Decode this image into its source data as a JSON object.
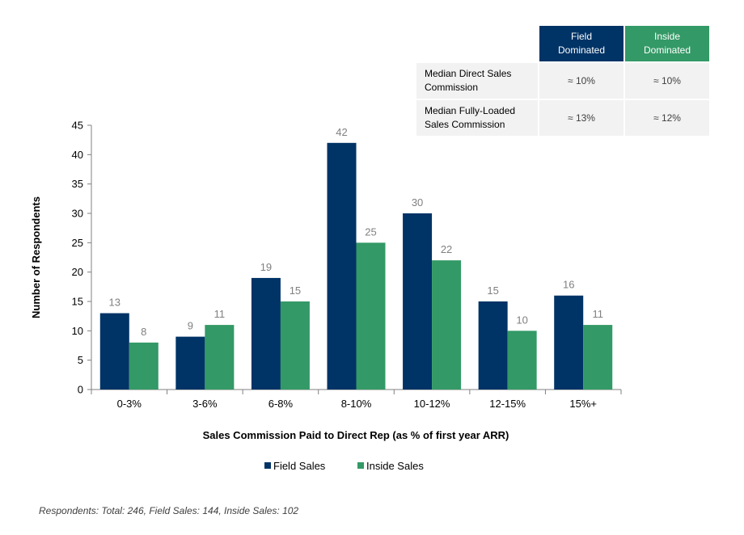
{
  "chart_data": {
    "type": "bar",
    "categories": [
      "0-3%",
      "3-6%",
      "6-8%",
      "8-10%",
      "10-12%",
      "12-15%",
      "15%+"
    ],
    "series": [
      {
        "name": "Field Sales",
        "values": [
          13,
          9,
          19,
          42,
          30,
          15,
          16
        ],
        "color": "#003366"
      },
      {
        "name": "Inside Sales",
        "values": [
          8,
          11,
          15,
          25,
          22,
          10,
          11
        ],
        "color": "#339966"
      }
    ],
    "xlabel": "Sales Commission Paid to Direct Rep (as % of  first year ARR)",
    "ylabel": "Number of Respondents",
    "ylim": [
      0,
      45
    ],
    "yticks": [
      0,
      5,
      10,
      15,
      20,
      25,
      30,
      35,
      40,
      45
    ],
    "grid": false,
    "legend": "bottom-center",
    "data_labels": true
  },
  "summary_table": {
    "header_field": "Field\nDominated",
    "header_inside": "Inside\nDominated",
    "header_field_color": "#003366",
    "header_inside_color": "#339966",
    "rows": [
      {
        "label": "Median Direct Sales Commission",
        "field": "≈ 10%",
        "inside": "≈ 10%"
      },
      {
        "label": "Median Fully-Loaded Sales Commission",
        "field": "≈ 13%",
        "inside": "≈ 12%"
      }
    ]
  },
  "footnote": "Respondents: Total: 246, Field Sales: 144, Inside Sales: 102"
}
